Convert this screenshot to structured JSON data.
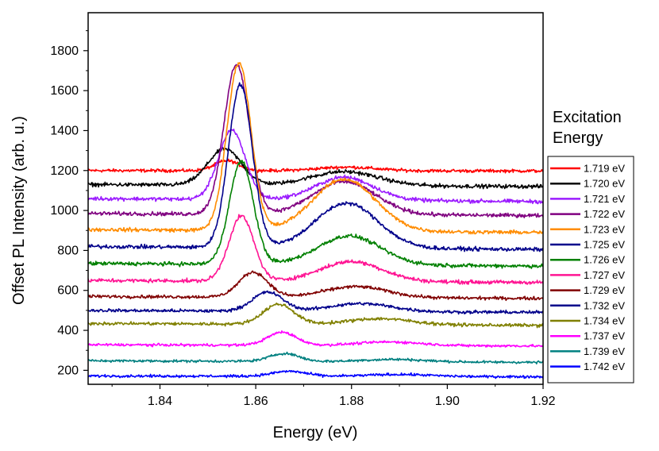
{
  "chart_data": {
    "type": "line",
    "title": "",
    "xlabel": "Energy (eV)",
    "ylabel": "Offset PL Intensity (arb. u.)",
    "xlim": [
      1.825,
      1.92
    ],
    "ylim": [
      130,
      1990
    ],
    "x_ticks": [
      1.84,
      1.86,
      1.88,
      1.9,
      1.92
    ],
    "x_tick_labels": [
      "1.84",
      "1.86",
      "1.88",
      "1.90",
      "1.92"
    ],
    "y_ticks": [
      200,
      400,
      600,
      800,
      1000,
      1200,
      1400,
      1600,
      1800
    ],
    "y_tick_labels": [
      "200",
      "400",
      "600",
      "800",
      "1000",
      "1200",
      "1400",
      "1600",
      "1800"
    ],
    "grid": false,
    "legend_title": "Excitation Energy",
    "legend_position": "right",
    "series": [
      {
        "name": "1.719 eV",
        "color": "#ff0000",
        "baseline": 1200,
        "end": 1198,
        "peaks": [
          {
            "c": 1.854,
            "w": 0.0025,
            "h": 50
          },
          {
            "c": 1.879,
            "w": 0.006,
            "h": 18
          }
        ],
        "noise": 5
      },
      {
        "name": "1.720 eV",
        "color": "#000000",
        "baseline": 1130,
        "end": 1120,
        "peaks": [
          {
            "c": 1.8535,
            "w": 0.0035,
            "h": 180
          },
          {
            "c": 1.8785,
            "w": 0.007,
            "h": 70
          }
        ],
        "noise": 6
      },
      {
        "name": "1.721 eV",
        "color": "#9b1bff",
        "baseline": 1060,
        "end": 1045,
        "peaks": [
          {
            "c": 1.855,
            "w": 0.0028,
            "h": 345
          },
          {
            "c": 1.8785,
            "w": 0.006,
            "h": 115
          }
        ],
        "noise": 6
      },
      {
        "name": "1.722 eV",
        "color": "#800080",
        "baseline": 985,
        "end": 975,
        "peaks": [
          {
            "c": 1.856,
            "w": 0.0026,
            "h": 750
          },
          {
            "c": 1.8785,
            "w": 0.0065,
            "h": 165
          }
        ],
        "noise": 6
      },
      {
        "name": "1.723 eV",
        "color": "#ff8c00",
        "baseline": 905,
        "end": 890,
        "peaks": [
          {
            "c": 1.8565,
            "w": 0.0025,
            "h": 840
          },
          {
            "c": 1.8785,
            "w": 0.0065,
            "h": 260
          }
        ],
        "noise": 6
      },
      {
        "name": "1.725 eV",
        "color": "#00008b",
        "baseline": 820,
        "end": 805,
        "peaks": [
          {
            "c": 1.8568,
            "w": 0.0025,
            "h": 815
          },
          {
            "c": 1.879,
            "w": 0.0065,
            "h": 225
          }
        ],
        "noise": 6
      },
      {
        "name": "1.726 eV",
        "color": "#008000",
        "baseline": 735,
        "end": 722,
        "peaks": [
          {
            "c": 1.857,
            "w": 0.0025,
            "h": 515
          },
          {
            "c": 1.8795,
            "w": 0.0065,
            "h": 145
          }
        ],
        "noise": 6
      },
      {
        "name": "1.727 eV",
        "color": "#ff1493",
        "baseline": 650,
        "end": 640,
        "peaks": [
          {
            "c": 1.857,
            "w": 0.0026,
            "h": 325
          },
          {
            "c": 1.88,
            "w": 0.0065,
            "h": 100
          }
        ],
        "noise": 6
      },
      {
        "name": "1.729 eV",
        "color": "#800000",
        "baseline": 570,
        "end": 560,
        "peaks": [
          {
            "c": 1.8595,
            "w": 0.003,
            "h": 125
          },
          {
            "c": 1.881,
            "w": 0.0065,
            "h": 55
          }
        ],
        "noise": 5
      },
      {
        "name": "1.732 eV",
        "color": "#00008b",
        "baseline": 500,
        "end": 490,
        "peaks": [
          {
            "c": 1.8625,
            "w": 0.0032,
            "h": 95
          },
          {
            "c": 1.882,
            "w": 0.0065,
            "h": 40
          }
        ],
        "noise": 5
      },
      {
        "name": "1.734 eV",
        "color": "#808000",
        "baseline": 435,
        "end": 425,
        "peaks": [
          {
            "c": 1.8648,
            "w": 0.0032,
            "h": 100
          },
          {
            "c": 1.886,
            "w": 0.0065,
            "h": 30
          }
        ],
        "noise": 5
      },
      {
        "name": "1.737 eV",
        "color": "#ff00ff",
        "baseline": 328,
        "end": 322,
        "peaks": [
          {
            "c": 1.8655,
            "w": 0.003,
            "h": 65
          },
          {
            "c": 1.888,
            "w": 0.0065,
            "h": 18
          }
        ],
        "noise": 4
      },
      {
        "name": "1.739 eV",
        "color": "#008080",
        "baseline": 248,
        "end": 240,
        "peaks": [
          {
            "c": 1.866,
            "w": 0.003,
            "h": 40
          },
          {
            "c": 1.889,
            "w": 0.0065,
            "h": 12
          }
        ],
        "noise": 4
      },
      {
        "name": "1.742 eV",
        "color": "#0000ff",
        "baseline": 172,
        "end": 168,
        "peaks": [
          {
            "c": 1.867,
            "w": 0.0035,
            "h": 25
          },
          {
            "c": 1.89,
            "w": 0.0065,
            "h": 10
          }
        ],
        "noise": 4
      }
    ]
  }
}
